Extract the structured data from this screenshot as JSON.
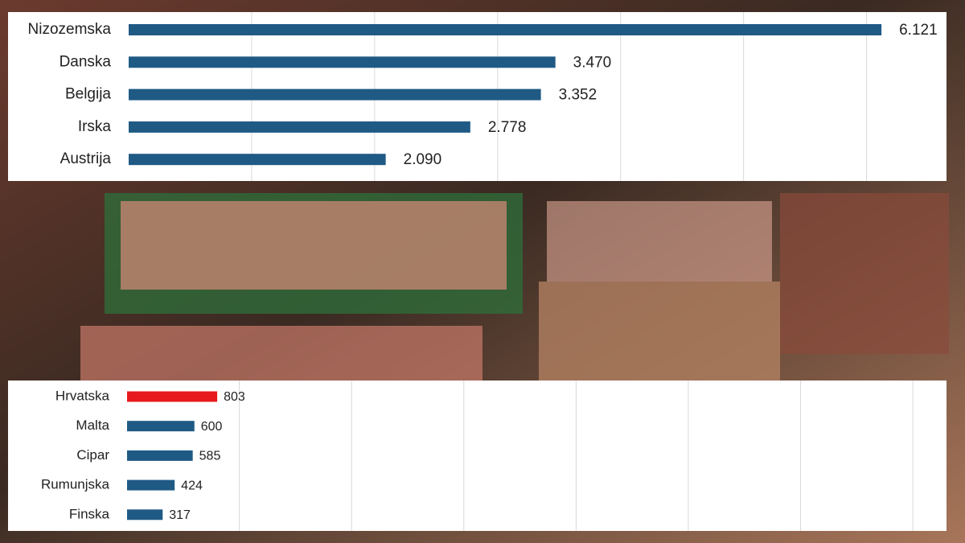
{
  "chart_data": [
    {
      "type": "bar",
      "orientation": "horizontal",
      "categories": [
        "Nizozemska",
        "Danska",
        "Belgija",
        "Irska",
        "Austrija"
      ],
      "values": [
        6121,
        3470,
        3352,
        2778,
        2090
      ],
      "value_labels": [
        "6.121",
        "3.470",
        "3.352",
        "2.778",
        "2.090"
      ],
      "colors": [
        "#1f5a85",
        "#1f5a85",
        "#1f5a85",
        "#1f5a85",
        "#1f5a85"
      ],
      "xlim": [
        0,
        6650
      ],
      "xticks": [
        1000,
        2000,
        3000,
        4000,
        5000,
        6000
      ],
      "grid": true
    },
    {
      "type": "bar",
      "orientation": "horizontal",
      "categories": [
        "Hrvatska",
        "Malta",
        "Cipar",
        "Rumunjska",
        "Finska"
      ],
      "values": [
        803,
        600,
        585,
        424,
        317
      ],
      "colors": [
        "#e8191c",
        "#1f5a85",
        "#1f5a85",
        "#1f5a85",
        "#1f5a85"
      ],
      "xlim": [
        0,
        7300
      ],
      "xticks": [
        1000,
        2000,
        3000,
        4000,
        5000,
        6000,
        7000
      ],
      "grid": true
    }
  ]
}
